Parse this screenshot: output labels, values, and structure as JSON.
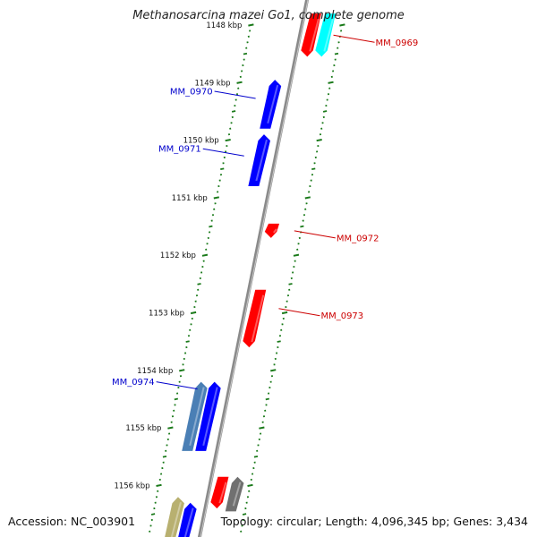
{
  "title": "Methanosarcina mazei Go1, complete genome",
  "footer": {
    "accession": "Accession: NC_003901",
    "summary": "Topology: circular; Length: 4,096,345 bp; Genes: 3,434"
  },
  "colors": {
    "forward_gene": "#0000ff",
    "reverse_gene": "#ff0000",
    "other_gene": "#00ffff",
    "steel_gene": "#4a7fb5",
    "gray_gene": "#707070",
    "khaki_gene": "#b8b070",
    "backbone": "#8a8a8a",
    "tick": "#1a7a1a",
    "forward_label": "#0000cc",
    "reverse_label": "#cc0000"
  },
  "ticks": [
    {
      "label": "1148 kbp",
      "pos_kbp": 1148
    },
    {
      "label": "1149 kbp",
      "pos_kbp": 1149
    },
    {
      "label": "1150 kbp",
      "pos_kbp": 1150
    },
    {
      "label": "1151 kbp",
      "pos_kbp": 1151
    },
    {
      "label": "1152 kbp",
      "pos_kbp": 1152
    },
    {
      "label": "1153 kbp",
      "pos_kbp": 1153
    },
    {
      "label": "1154 kbp",
      "pos_kbp": 1154
    },
    {
      "label": "1155 kbp",
      "pos_kbp": 1155
    },
    {
      "label": "1156 kbp",
      "pos_kbp": 1156
    }
  ],
  "features": [
    {
      "track": "reverse-inner",
      "color": "reverse_gene",
      "start_kbp": 1147.8,
      "end_kbp": 1148.55,
      "strand": -1
    },
    {
      "track": "reverse-outer",
      "color": "other_gene",
      "start_kbp": 1147.8,
      "end_kbp": 1148.55,
      "strand": -1
    },
    {
      "track": "forward-inner",
      "color": "forward_gene",
      "start_kbp": 1148.95,
      "end_kbp": 1149.8,
      "strand": 1
    },
    {
      "track": "forward-inner",
      "color": "forward_gene",
      "start_kbp": 1149.9,
      "end_kbp": 1150.8,
      "strand": 1
    },
    {
      "track": "reverse-inner",
      "color": "reverse_gene",
      "start_kbp": 1151.45,
      "end_kbp": 1151.7,
      "strand": -1
    },
    {
      "track": "reverse-inner",
      "color": "reverse_gene",
      "start_kbp": 1152.6,
      "end_kbp": 1153.6,
      "strand": -1
    },
    {
      "track": "forward-outer",
      "color": "steel_gene",
      "start_kbp": 1154.2,
      "end_kbp": 1155.4,
      "strand": 1
    },
    {
      "track": "forward-inner",
      "color": "forward_gene",
      "start_kbp": 1154.2,
      "end_kbp": 1155.4,
      "strand": 1
    },
    {
      "track": "reverse-inner",
      "color": "reverse_gene",
      "start_kbp": 1155.85,
      "end_kbp": 1156.4,
      "strand": -1
    },
    {
      "track": "reverse-outer",
      "color": "gray_gene",
      "start_kbp": 1155.85,
      "end_kbp": 1156.45,
      "strand": 1
    },
    {
      "track": "forward-outer",
      "color": "khaki_gene",
      "start_kbp": 1156.2,
      "end_kbp": 1157,
      "strand": 1
    },
    {
      "track": "forward-inner",
      "color": "forward_gene",
      "start_kbp": 1156.3,
      "end_kbp": 1157,
      "strand": 1
    }
  ],
  "gene_labels": [
    {
      "text": "MM_0969",
      "side": "right",
      "pos_kbp": 1148.3,
      "color": "reverse_label"
    },
    {
      "text": "MM_0970",
      "side": "left",
      "pos_kbp": 1149.15,
      "color": "forward_label"
    },
    {
      "text": "MM_0971",
      "side": "left",
      "pos_kbp": 1150.15,
      "color": "forward_label"
    },
    {
      "text": "MM_0972",
      "side": "right",
      "pos_kbp": 1151.7,
      "color": "reverse_label"
    },
    {
      "text": "MM_0973",
      "side": "right",
      "pos_kbp": 1153.05,
      "color": "reverse_label"
    },
    {
      "text": "MM_0974",
      "side": "left",
      "pos_kbp": 1154.2,
      "color": "forward_label"
    }
  ]
}
